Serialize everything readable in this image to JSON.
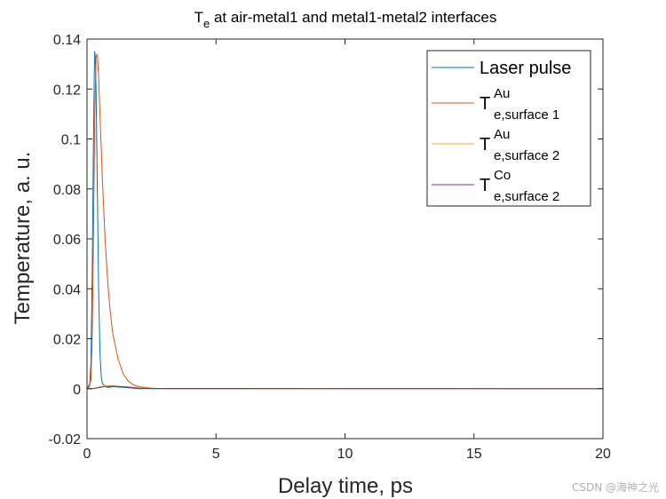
{
  "chart_data": {
    "type": "line",
    "title": {
      "main": "T",
      "sub": "e",
      "rest": " at air-metal1 and metal1-metal2 interfaces"
    },
    "xlabel": "Delay time, ps",
    "ylabel": "Temperature, a. u.",
    "xlim": [
      0,
      20
    ],
    "ylim": [
      -0.02,
      0.14
    ],
    "xticks": [
      0,
      5,
      10,
      15,
      20
    ],
    "yticks": [
      -0.02,
      0,
      0.02,
      0.04,
      0.06,
      0.08,
      0.1,
      0.12,
      0.14
    ],
    "ytick_labels": [
      "-0.02",
      "0",
      "0.02",
      "0.04",
      "0.06",
      "0.08",
      "0.1",
      "0.12",
      "0.14"
    ],
    "grid": false,
    "legend_position": "top-right",
    "series": [
      {
        "name": "Laser pulse",
        "color": "#0072BD",
        "x": [
          0,
          0.1,
          0.15,
          0.2,
          0.25,
          0.28,
          0.3,
          0.32,
          0.35,
          0.4,
          0.45,
          0.5,
          0.55,
          0.6,
          0.65,
          0.7,
          0.8,
          1,
          1.5,
          2,
          20
        ],
        "y": [
          0,
          0.001,
          0.01,
          0.045,
          0.1,
          0.125,
          0.135,
          0.133,
          0.12,
          0.08,
          0.04,
          0.015,
          0.005,
          0.002,
          0.0015,
          0.001,
          0.0005,
          0.0008,
          0.0005,
          0,
          0
        ]
      },
      {
        "name": "T_e,surface 1 (Au)",
        "color": "#D95319",
        "x": [
          0,
          0.15,
          0.2,
          0.25,
          0.3,
          0.35,
          0.4,
          0.45,
          0.5,
          0.6,
          0.7,
          0.8,
          0.9,
          1,
          1.2,
          1.4,
          1.6,
          1.8,
          2,
          2.5,
          3,
          20
        ],
        "y": [
          0,
          0.003,
          0.02,
          0.06,
          0.11,
          0.133,
          0.134,
          0.125,
          0.11,
          0.083,
          0.06,
          0.043,
          0.031,
          0.022,
          0.012,
          0.006,
          0.003,
          0.0015,
          0.0008,
          0.0002,
          0,
          0
        ]
      },
      {
        "name": "T_e,surface 2 (Au)",
        "color": "#EDB120",
        "x": [
          0,
          0.2,
          0.3,
          0.4,
          0.5,
          0.6,
          0.8,
          1,
          1.2,
          1.5,
          1.8,
          2,
          2.5,
          20
        ],
        "y": [
          0,
          0,
          0.0002,
          0.0005,
          0.0008,
          0.001,
          0.0012,
          0.0012,
          0.001,
          0.0008,
          0.0005,
          0.0003,
          0.0001,
          0
        ]
      },
      {
        "name": "T_e,surface 2 (Co)",
        "color": "#7E2F8E",
        "x": [
          0,
          0.2,
          0.3,
          0.4,
          0.5,
          0.6,
          0.8,
          1,
          1.2,
          1.5,
          1.8,
          2,
          2.5,
          20
        ],
        "y": [
          0,
          0,
          0.0001,
          0.0003,
          0.0005,
          0.0007,
          0.0009,
          0.001,
          0.0009,
          0.0007,
          0.0004,
          0.0002,
          0.0001,
          0
        ]
      }
    ],
    "legend": [
      {
        "type": "plain",
        "text": "Laser pulse",
        "color": "#0072BD"
      },
      {
        "type": "math",
        "base": "T",
        "sup": "Au",
        "sub": "e,surface 1",
        "color": "#D95319"
      },
      {
        "type": "math",
        "base": "T",
        "sup": "Au",
        "sub": "e,surface 2",
        "color": "#EDB120"
      },
      {
        "type": "math",
        "base": "T",
        "sup": "Co",
        "sub": "e,surface 2",
        "color": "#7E2F8E"
      }
    ]
  },
  "watermark": "CSDN @海神之光"
}
